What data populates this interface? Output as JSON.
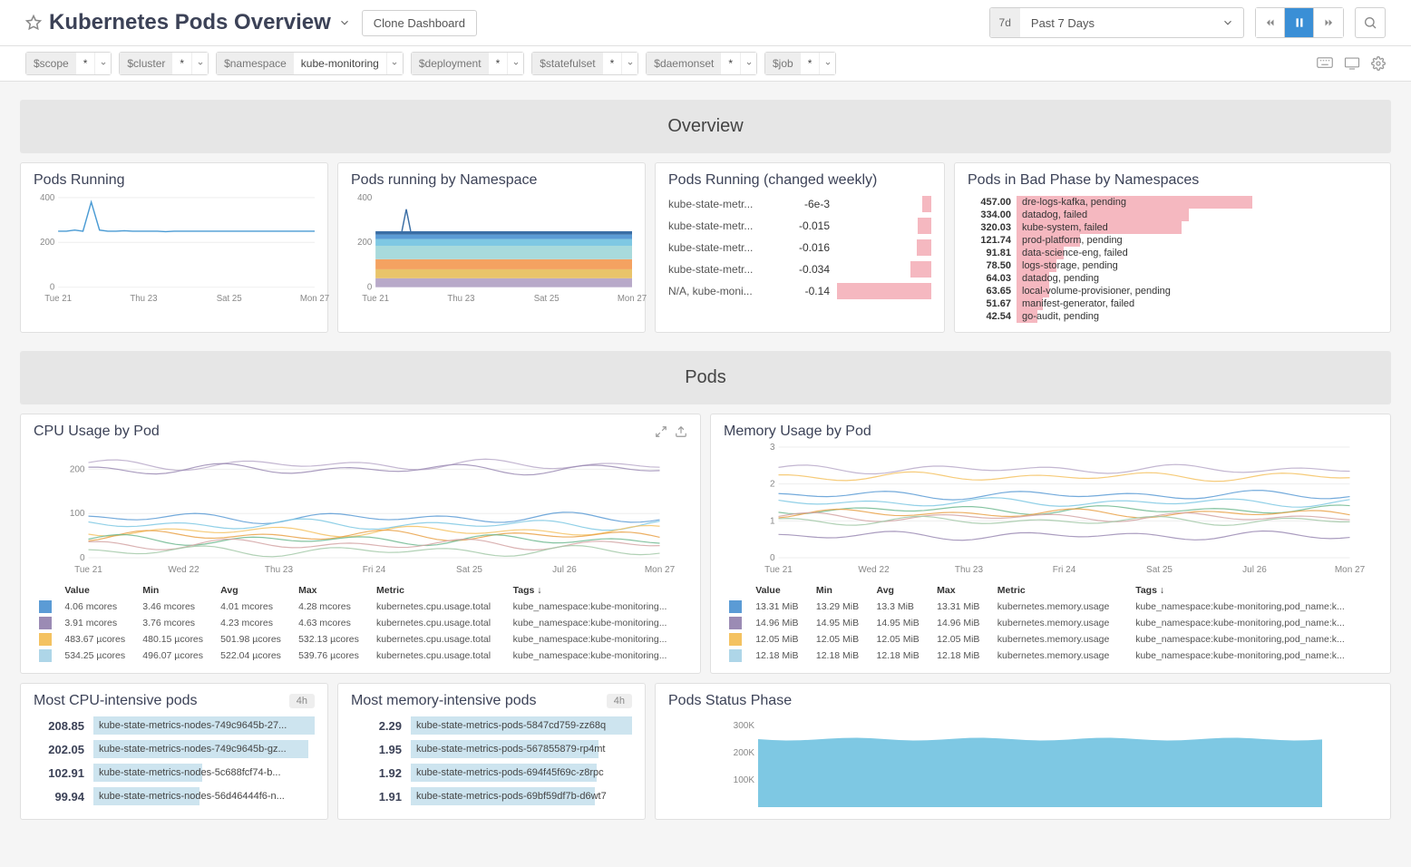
{
  "header": {
    "title": "Kubernetes Pods Overview",
    "clone_label": "Clone Dashboard",
    "time_badge": "7d",
    "time_label": "Past 7 Days"
  },
  "vars": [
    {
      "key": "$scope",
      "val": "*"
    },
    {
      "key": "$cluster",
      "val": "*"
    },
    {
      "key": "$namespace",
      "val": "kube-monitoring"
    },
    {
      "key": "$deployment",
      "val": "*"
    },
    {
      "key": "$statefulset",
      "val": "*"
    },
    {
      "key": "$daemonset",
      "val": "*"
    },
    {
      "key": "$job",
      "val": "*"
    }
  ],
  "sections": {
    "overview": "Overview",
    "pods": "Pods"
  },
  "pods_running": {
    "title": "Pods Running",
    "ymax": 400,
    "yticks": [
      0,
      200,
      400
    ],
    "xticks": [
      "Tue 21",
      "Thu 23",
      "Sat 25",
      "Mon 27"
    ],
    "line_color": "#4a9bd4",
    "data": [
      250,
      250,
      255,
      250,
      380,
      255,
      250,
      250,
      252,
      250,
      250,
      250,
      250,
      248,
      250,
      250,
      250,
      250,
      250,
      250,
      250,
      250,
      250,
      250,
      250,
      250,
      250,
      250,
      250,
      250,
      250,
      250
    ]
  },
  "pods_by_ns": {
    "title": "Pods running by Namespace",
    "ymax": 400,
    "yticks": [
      0,
      200,
      400
    ],
    "xticks": [
      "Tue 21",
      "Thu 23",
      "Sat 25",
      "Mon 27"
    ],
    "colors": [
      "#3a6ea5",
      "#5b9bd5",
      "#7ec8e3",
      "#a8dadc",
      "#f4a261",
      "#e9c46a",
      "#b8a9c9"
    ]
  },
  "pods_changed": {
    "title": "Pods Running (changed weekly)",
    "bar_color": "#f5b8c0",
    "rows": [
      {
        "label": "kube-state-metr...",
        "val": "-6e-3",
        "w": 10
      },
      {
        "label": "kube-state-metr...",
        "val": "-0.015",
        "w": 14
      },
      {
        "label": "kube-state-metr...",
        "val": "-0.016",
        "w": 15
      },
      {
        "label": "kube-state-metr...",
        "val": "-0.034",
        "w": 22
      },
      {
        "label": "N/A, kube-moni...",
        "val": "-0.14",
        "w": 100
      }
    ]
  },
  "bad_phase": {
    "title": "Pods in Bad Phase by Namespaces",
    "bar_color": "#f5b8c0",
    "rows": [
      {
        "val": "457.00",
        "label": "dre-logs-kafka, pending",
        "w": 100
      },
      {
        "val": "334.00",
        "label": "datadog, failed",
        "w": 73
      },
      {
        "val": "320.03",
        "label": "kube-system, failed",
        "w": 70
      },
      {
        "val": "121.74",
        "label": "prod-platform, pending",
        "w": 27
      },
      {
        "val": "91.81",
        "label": "data-science-eng, failed",
        "w": 20
      },
      {
        "val": "78.50",
        "label": "logs-storage, pending",
        "w": 17
      },
      {
        "val": "64.03",
        "label": "datadog, pending",
        "w": 14
      },
      {
        "val": "63.65",
        "label": "local-volume-provisioner, pending",
        "w": 14
      },
      {
        "val": "51.67",
        "label": "manifest-generator, failed",
        "w": 11
      },
      {
        "val": "42.54",
        "label": "go-audit, pending",
        "w": 9
      }
    ]
  },
  "cpu_usage": {
    "title": "CPU Usage by Pod",
    "ymax": 250,
    "yticks": [
      0,
      100,
      200
    ],
    "xticks": [
      "Tue 21",
      "Wed 22",
      "Thu 23",
      "Fri 24",
      "Sat 25",
      "Jul 26",
      "Mon 27"
    ],
    "colors": [
      "#b8a9c9",
      "#9b8bb4",
      "#5b9bd5",
      "#7ec8e3",
      "#f4c261",
      "#e9a146",
      "#6fb98f",
      "#d4a5a5",
      "#a3c9a8"
    ],
    "headers": [
      "Value",
      "Min",
      "Avg",
      "Max",
      "Metric",
      "Tags ↓"
    ],
    "rows": [
      {
        "c": "#5b9bd5",
        "cells": [
          "4.06 mcores",
          "3.46 mcores",
          "4.01 mcores",
          "4.28 mcores",
          "kubernetes.cpu.usage.total",
          "kube_namespace:kube-monitoring..."
        ]
      },
      {
        "c": "#9b8bb4",
        "cells": [
          "3.91 mcores",
          "3.76 mcores",
          "4.23 mcores",
          "4.63 mcores",
          "kubernetes.cpu.usage.total",
          "kube_namespace:kube-monitoring..."
        ]
      },
      {
        "c": "#f4c261",
        "cells": [
          "483.67 µcores",
          "480.15 µcores",
          "501.98 µcores",
          "532.13 µcores",
          "kubernetes.cpu.usage.total",
          "kube_namespace:kube-monitoring..."
        ]
      },
      {
        "c": "#aed6e8",
        "cells": [
          "534.25 µcores",
          "496.07 µcores",
          "522.04 µcores",
          "539.76 µcores",
          "kubernetes.cpu.usage.total",
          "kube_namespace:kube-monitoring..."
        ]
      }
    ]
  },
  "mem_usage": {
    "title": "Memory Usage by Pod",
    "ymax": 3,
    "yticks": [
      0,
      1,
      2,
      3
    ],
    "xticks": [
      "Tue 21",
      "Wed 22",
      "Thu 23",
      "Fri 24",
      "Sat 25",
      "Jul 26",
      "Mon 27"
    ],
    "colors": [
      "#b8a9c9",
      "#f4c261",
      "#5b9bd5",
      "#7ec8e3",
      "#6fb98f",
      "#e9a146",
      "#d4a5a5",
      "#a3c9a8",
      "#9b8bb4"
    ],
    "headers": [
      "Value",
      "Min",
      "Avg",
      "Max",
      "Metric",
      "Tags ↓"
    ],
    "rows": [
      {
        "c": "#5b9bd5",
        "cells": [
          "13.31 MiB",
          "13.29 MiB",
          "13.3 MiB",
          "13.31 MiB",
          "kubernetes.memory.usage",
          "kube_namespace:kube-monitoring,pod_name:k..."
        ]
      },
      {
        "c": "#9b8bb4",
        "cells": [
          "14.96 MiB",
          "14.95 MiB",
          "14.95 MiB",
          "14.96 MiB",
          "kubernetes.memory.usage",
          "kube_namespace:kube-monitoring,pod_name:k..."
        ]
      },
      {
        "c": "#f4c261",
        "cells": [
          "12.05 MiB",
          "12.05 MiB",
          "12.05 MiB",
          "12.05 MiB",
          "kubernetes.memory.usage",
          "kube_namespace:kube-monitoring,pod_name:k..."
        ]
      },
      {
        "c": "#aed6e8",
        "cells": [
          "12.18 MiB",
          "12.18 MiB",
          "12.18 MiB",
          "12.18 MiB",
          "kubernetes.memory.usage",
          "kube_namespace:kube-monitoring,pod_name:k..."
        ]
      }
    ]
  },
  "cpu_top": {
    "title": "Most CPU-intensive pods",
    "badge": "4h",
    "rows": [
      {
        "val": "208.85",
        "label": "kube-state-metrics-nodes-749c9645b-27...",
        "w": 100
      },
      {
        "val": "202.05",
        "label": "kube-state-metrics-nodes-749c9645b-gz...",
        "w": 97
      },
      {
        "val": "102.91",
        "label": "kube-state-metrics-nodes-5c688fcf74-b...",
        "w": 49
      },
      {
        "val": "99.94",
        "label": "kube-state-metrics-nodes-56d46444f6-n...",
        "w": 48
      }
    ]
  },
  "mem_top": {
    "title": "Most memory-intensive pods",
    "badge": "4h",
    "rows": [
      {
        "val": "2.29",
        "label": "kube-state-metrics-pods-5847cd759-zz68q",
        "w": 100
      },
      {
        "val": "1.95",
        "label": "kube-state-metrics-pods-567855879-rp4mt",
        "w": 85
      },
      {
        "val": "1.92",
        "label": "kube-state-metrics-pods-694f45f69c-z8rpc",
        "w": 84
      },
      {
        "val": "1.91",
        "label": "kube-state-metrics-pods-69bf59df7b-d6wt7",
        "w": 83
      }
    ]
  },
  "status_phase": {
    "title": "Pods Status Phase",
    "ymax": 300000,
    "yticks": [
      "100K",
      "200K",
      "300K"
    ],
    "color": "#7ec8e3"
  }
}
